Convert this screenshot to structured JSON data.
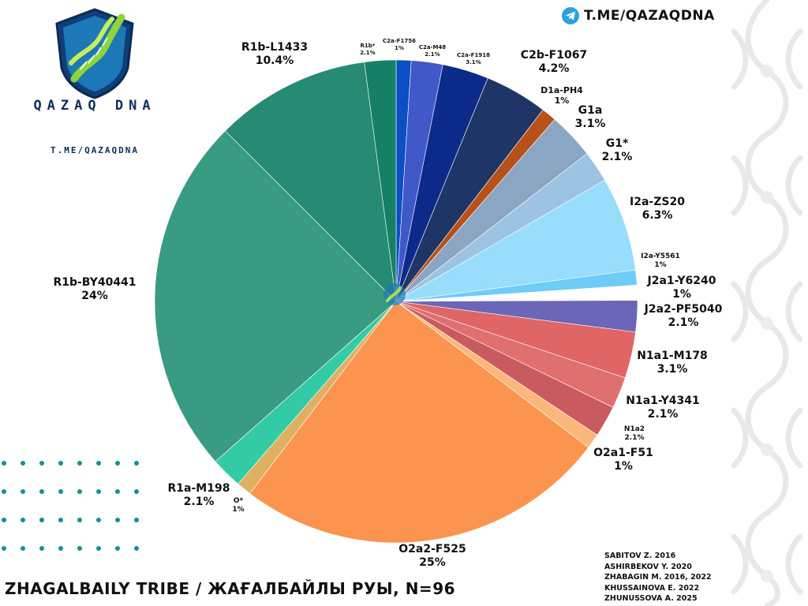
{
  "header": {
    "telegram_link": "T.ME/QAZAQDNA"
  },
  "logo": {
    "brand": "QAZAQ DNA",
    "url": "T.ME/QAZAQDNA"
  },
  "footer": {
    "title": "ZHAGALBAILY TRIBE / ЖАҒАЛБАЙЛЫ РУЫ, N=96",
    "sources": [
      "SABITOV Z. 2016",
      "ASHIRBEKOV Y. 2020",
      "ZHABAGIN M. 2016, 2022",
      "KHUSSAINOVA E. 2022",
      "ZHUNUSSOVA A. 2025"
    ]
  },
  "chart_data": {
    "type": "pie",
    "title": "ZHAGALBAILY TRIBE / ЖАҒАЛБАЙЛЫ РУЫ, N=96",
    "total": 96,
    "start": "top, clockwise",
    "slices": [
      {
        "label": "C2a-F1756",
        "value": 1,
        "percent_label": "1%",
        "color": "#0a4fc4"
      },
      {
        "label": "C2a-M48",
        "value": 2.1,
        "percent_label": "2.1%",
        "color": "#4158c8"
      },
      {
        "label": "C2a-F1918",
        "value": 3.1,
        "percent_label": "3.1%",
        "color": "#0b2a8a"
      },
      {
        "label": "C2b-F1067",
        "value": 4.2,
        "percent_label": "4.2%",
        "color": "#1f3566"
      },
      {
        "label": "D1a-PH4",
        "value": 1,
        "percent_label": "1%",
        "color": "#b8501a"
      },
      {
        "label": "G1a",
        "value": 3.1,
        "percent_label": "3.1%",
        "color": "#8aa6c3"
      },
      {
        "label": "G1*",
        "value": 2.1,
        "percent_label": "2.1%",
        "color": "#9cc3e2"
      },
      {
        "label": "I2a-ZS20",
        "value": 6.3,
        "percent_label": "6.3%",
        "color": "#98ddfb"
      },
      {
        "label": "I2a-Y5561",
        "value": 1,
        "percent_label": "1%",
        "color": "#6fcbf7"
      },
      {
        "label": "J2a1-Y6240",
        "value": 1,
        "percent_label": "1%",
        "color": "#ffffff"
      },
      {
        "label": "J2a2-PF5040",
        "value": 2.1,
        "percent_label": "2.1%",
        "color": "#6b66b8"
      },
      {
        "label": "N1a1-M178",
        "value": 3.1,
        "percent_label": "3.1%",
        "color": "#e06565"
      },
      {
        "label": "N1a1-Y4341",
        "value": 2.1,
        "percent_label": "2.1%",
        "color": "#e07070"
      },
      {
        "label": "N1a2",
        "value": 2.1,
        "percent_label": "2.1%",
        "color": "#c95b60"
      },
      {
        "label": "O2a1-F51",
        "value": 1,
        "percent_label": "1%",
        "color": "#fbb77a"
      },
      {
        "label": "O2a2-F525",
        "value": 25,
        "percent_label": "25%",
        "color": "#fb944e"
      },
      {
        "label": "O*",
        "value": 1,
        "percent_label": "1%",
        "color": "#e0b062"
      },
      {
        "label": "R1a-M198",
        "value": 2.1,
        "percent_label": "2.1%",
        "color": "#33cba5"
      },
      {
        "label": "R1b-BY40441",
        "value": 24,
        "percent_label": "24%",
        "color": "#399b82"
      },
      {
        "label": "R1b-L1433",
        "value": 10.4,
        "percent_label": "10.4%",
        "color": "#278a73"
      },
      {
        "label": "R1b*",
        "value": 2.1,
        "percent_label": "2.1%",
        "color": "#168066"
      }
    ]
  }
}
